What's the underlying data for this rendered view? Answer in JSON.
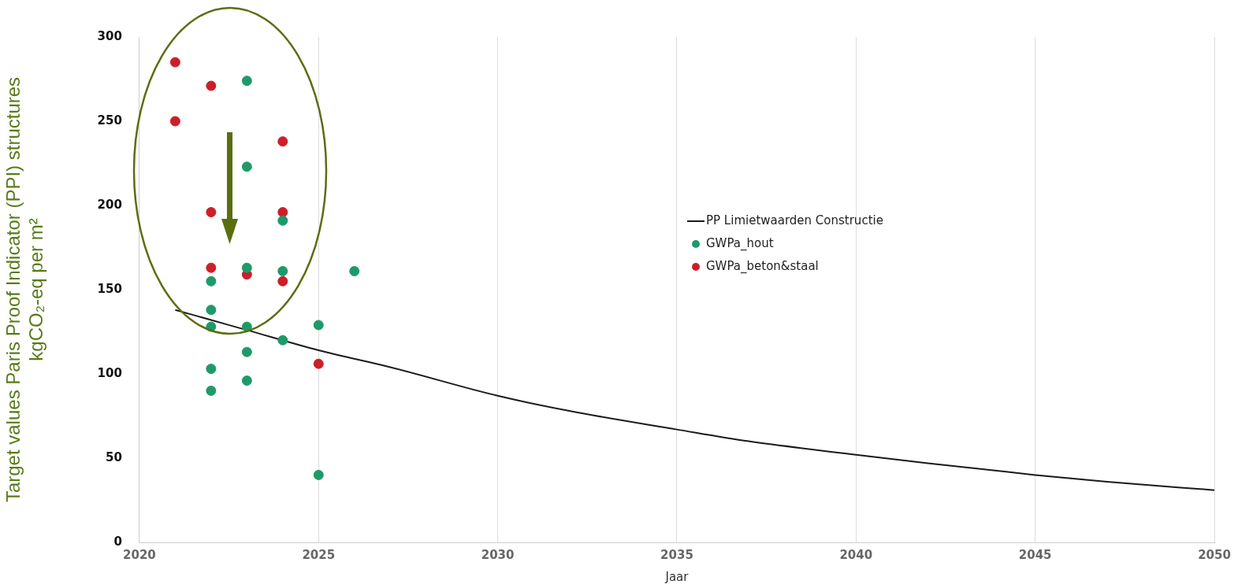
{
  "chart_data": {
    "type": "scatter",
    "xlabel": "Jaar",
    "ylabel": "Target values Paris Proof Indicator (PPI) structures\nkgCO₂-eq per m²",
    "xlim": [
      2020,
      2050
    ],
    "xticks": [
      2020,
      2025,
      2030,
      2035,
      2040,
      2045,
      2050
    ],
    "ylim": [
      0,
      300
    ],
    "yticks": [
      0,
      50,
      100,
      150,
      200,
      250,
      300
    ],
    "grid": "x",
    "legend": "right",
    "marker": "circle",
    "series": [
      {
        "name": "PP Limietwaarden Constructie",
        "type": "line",
        "color": "#1a1a1a",
        "line_style": "solid",
        "marker": "none",
        "x": [
          2021,
          2022,
          2023,
          2025,
          2027,
          2030,
          2032,
          2035,
          2037,
          2040,
          2042,
          2045,
          2047,
          2050
        ],
        "values": [
          138,
          132,
          126,
          114,
          104,
          87,
          78,
          67,
          60,
          52,
          47,
          40,
          36,
          31
        ]
      },
      {
        "name": "GWPa_hout",
        "color": "#1e9a6a",
        "x": [
          2022,
          2022,
          2022,
          2022,
          2022,
          2023,
          2023,
          2023,
          2023,
          2023,
          2023,
          2024,
          2024,
          2024,
          2025,
          2025,
          2026
        ],
        "values": [
          155,
          138,
          128,
          103,
          90,
          274,
          223,
          163,
          128,
          113,
          96,
          191,
          161,
          120,
          129,
          40,
          161
        ]
      },
      {
        "name": "GWPa_beton&staal",
        "color": "#cc1f2a",
        "x": [
          2021,
          2021,
          2022,
          2022,
          2022,
          2023,
          2024,
          2024,
          2024,
          2025
        ],
        "values": [
          285,
          250,
          271,
          196,
          163,
          159,
          238,
          196,
          155,
          106
        ]
      }
    ]
  }
}
